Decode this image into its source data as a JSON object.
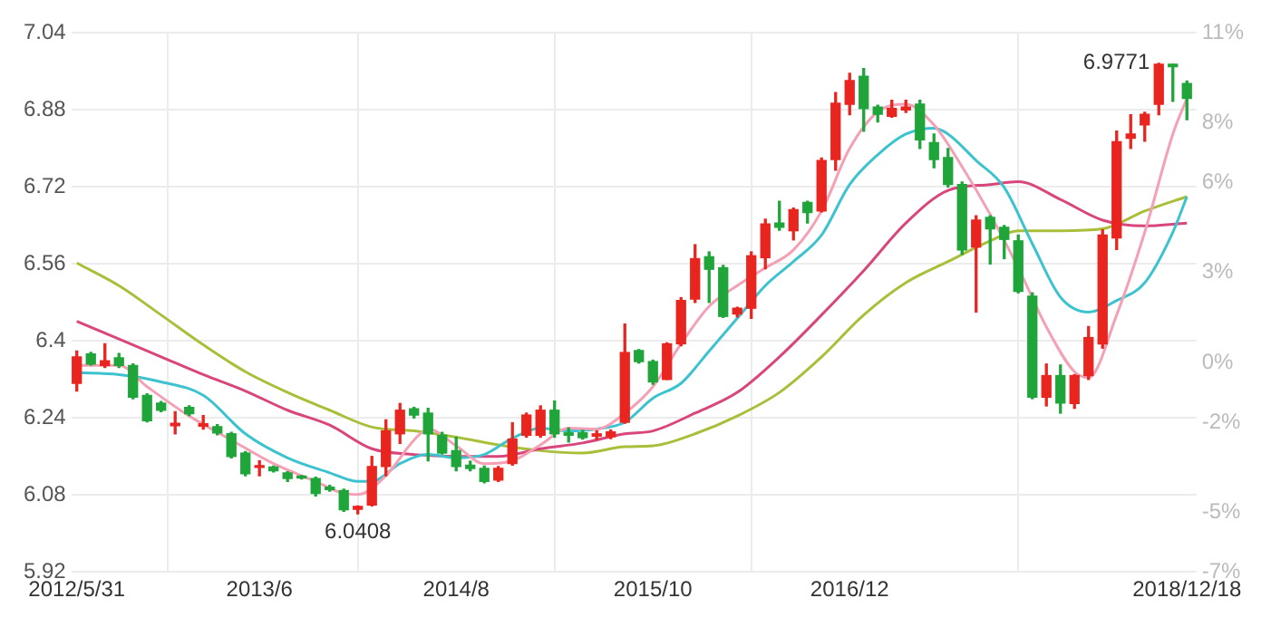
{
  "chart_data": {
    "type": "candlestick",
    "x": [
      "2012-05",
      "2012-06",
      "2012-07",
      "2012-08",
      "2012-09",
      "2012-10",
      "2012-11",
      "2012-12",
      "2013-01",
      "2013-02",
      "2013-03",
      "2013-04",
      "2013-05",
      "2013-06",
      "2013-07",
      "2013-08",
      "2013-09",
      "2013-10",
      "2013-11",
      "2013-12",
      "2014-01",
      "2014-02",
      "2014-03",
      "2014-04",
      "2014-05",
      "2014-06",
      "2014-07",
      "2014-08",
      "2014-09",
      "2014-10",
      "2014-11",
      "2014-12",
      "2015-01",
      "2015-02",
      "2015-03",
      "2015-04",
      "2015-05",
      "2015-06",
      "2015-07",
      "2015-08",
      "2015-09",
      "2015-10",
      "2015-11",
      "2015-12",
      "2016-01",
      "2016-02",
      "2016-03",
      "2016-04",
      "2016-05",
      "2016-06",
      "2016-07",
      "2016-08",
      "2016-09",
      "2016-10",
      "2016-11",
      "2016-12",
      "2017-01",
      "2017-02",
      "2017-03",
      "2017-04",
      "2017-05",
      "2017-06",
      "2017-07",
      "2017-08",
      "2017-09",
      "2017-10",
      "2017-11",
      "2017-12",
      "2018-01",
      "2018-02",
      "2018-03",
      "2018-04",
      "2018-05",
      "2018-06",
      "2018-07",
      "2018-08",
      "2018-09",
      "2018-10",
      "2018-11",
      "2018-12"
    ],
    "ohlc": [
      [
        6.312,
        6.379,
        6.296,
        6.367
      ],
      [
        6.373,
        6.376,
        6.35,
        6.352
      ],
      [
        6.349,
        6.394,
        6.345,
        6.359
      ],
      [
        6.365,
        6.374,
        6.345,
        6.349
      ],
      [
        6.349,
        6.352,
        6.28,
        6.283
      ],
      [
        6.287,
        6.29,
        6.232,
        6.234
      ],
      [
        6.271,
        6.274,
        6.253,
        6.256
      ],
      [
        6.224,
        6.253,
        6.207,
        6.229
      ],
      [
        6.262,
        6.265,
        6.245,
        6.249
      ],
      [
        6.223,
        6.245,
        6.217,
        6.228
      ],
      [
        6.222,
        6.226,
        6.205,
        6.209
      ],
      [
        6.207,
        6.21,
        6.157,
        6.16
      ],
      [
        6.167,
        6.17,
        6.12,
        6.124
      ],
      [
        6.137,
        6.151,
        6.12,
        6.141
      ],
      [
        6.138,
        6.14,
        6.128,
        6.13
      ],
      [
        6.126,
        6.128,
        6.108,
        6.114
      ],
      [
        6.119,
        6.12,
        6.113,
        6.115
      ],
      [
        6.114,
        6.117,
        6.078,
        6.083
      ],
      [
        6.096,
        6.1,
        6.088,
        6.091
      ],
      [
        6.089,
        6.092,
        6.046,
        6.049
      ],
      [
        6.05,
        6.057,
        6.0408,
        6.056
      ],
      [
        6.059,
        6.16,
        6.057,
        6.139
      ],
      [
        6.139,
        6.236,
        6.12,
        6.213
      ],
      [
        6.207,
        6.27,
        6.187,
        6.256
      ],
      [
        6.259,
        6.262,
        6.24,
        6.246
      ],
      [
        6.25,
        6.26,
        6.151,
        6.207
      ],
      [
        6.204,
        6.21,
        6.165,
        6.167
      ],
      [
        6.172,
        6.2,
        6.13,
        6.139
      ],
      [
        6.142,
        6.15,
        6.13,
        6.135
      ],
      [
        6.135,
        6.14,
        6.105,
        6.108
      ],
      [
        6.111,
        6.139,
        6.108,
        6.135
      ],
      [
        6.145,
        6.23,
        6.142,
        6.196
      ],
      [
        6.204,
        6.25,
        6.2,
        6.246
      ],
      [
        6.204,
        6.265,
        6.2,
        6.256
      ],
      [
        6.256,
        6.275,
        6.2,
        6.207
      ],
      [
        6.209,
        6.219,
        6.19,
        6.204
      ],
      [
        6.209,
        6.214,
        6.196,
        6.199
      ],
      [
        6.202,
        6.213,
        6.195,
        6.207
      ],
      [
        6.201,
        6.215,
        6.197,
        6.211
      ],
      [
        6.231,
        6.435,
        6.229,
        6.376
      ],
      [
        6.38,
        6.382,
        6.354,
        6.357
      ],
      [
        6.357,
        6.36,
        6.31,
        6.315
      ],
      [
        6.32,
        6.396,
        6.32,
        6.394
      ],
      [
        6.394,
        6.49,
        6.39,
        6.484
      ],
      [
        6.487,
        6.6,
        6.48,
        6.571
      ],
      [
        6.575,
        6.585,
        6.48,
        6.549
      ],
      [
        6.552,
        6.557,
        6.449,
        6.451
      ],
      [
        6.456,
        6.47,
        6.45,
        6.468
      ],
      [
        6.468,
        6.585,
        6.447,
        6.577
      ],
      [
        6.573,
        6.653,
        6.55,
        6.643
      ],
      [
        6.645,
        6.69,
        6.63,
        6.636
      ],
      [
        6.629,
        6.676,
        6.61,
        6.673
      ],
      [
        6.688,
        6.69,
        6.645,
        6.667
      ],
      [
        6.67,
        6.78,
        6.668,
        6.775
      ],
      [
        6.777,
        6.916,
        6.755,
        6.894
      ],
      [
        6.892,
        6.956,
        6.87,
        6.941
      ],
      [
        6.95,
        6.966,
        6.836,
        6.883
      ],
      [
        6.886,
        6.89,
        6.855,
        6.871
      ],
      [
        6.867,
        6.9,
        6.865,
        6.883
      ],
      [
        6.88,
        6.9,
        6.875,
        6.886
      ],
      [
        6.892,
        6.9,
        6.8,
        6.818
      ],
      [
        6.812,
        6.83,
        6.76,
        6.777
      ],
      [
        6.781,
        6.8,
        6.72,
        6.725
      ],
      [
        6.725,
        6.73,
        6.58,
        6.589
      ],
      [
        6.595,
        6.66,
        6.46,
        6.651
      ],
      [
        6.657,
        6.66,
        6.56,
        6.633
      ],
      [
        6.636,
        6.64,
        6.571,
        6.611
      ],
      [
        6.608,
        6.62,
        6.5,
        6.503
      ],
      [
        6.493,
        6.5,
        6.28,
        6.283
      ],
      [
        6.283,
        6.352,
        6.265,
        6.328
      ],
      [
        6.328,
        6.35,
        6.25,
        6.271
      ],
      [
        6.27,
        6.33,
        6.26,
        6.328
      ],
      [
        6.328,
        6.43,
        6.32,
        6.407
      ],
      [
        6.394,
        6.631,
        6.385,
        6.62
      ],
      [
        6.614,
        6.836,
        6.59,
        6.814
      ],
      [
        6.821,
        6.87,
        6.8,
        6.83
      ],
      [
        6.849,
        6.875,
        6.815,
        6.871
      ],
      [
        6.892,
        6.9771,
        6.87,
        6.975
      ],
      [
        6.975,
        6.975,
        6.898,
        6.97
      ],
      [
        6.935,
        6.94,
        6.86,
        6.904
      ]
    ],
    "colors": [
      "#e8251f",
      "#1fa53a",
      "#e8251f",
      "#1fa53a",
      "#1fa53a",
      "#1fa53a",
      "#1fa53a",
      "#e8251f",
      "#1fa53a",
      "#e8251f",
      "#1fa53a",
      "#1fa53a",
      "#1fa53a",
      "#e8251f",
      "#1fa53a",
      "#1fa53a",
      "#1fa53a",
      "#1fa53a",
      "#1fa53a",
      "#1fa53a",
      "#e8251f",
      "#e8251f",
      "#e8251f",
      "#e8251f",
      "#1fa53a",
      "#1fa53a",
      "#1fa53a",
      "#1fa53a",
      "#1fa53a",
      "#1fa53a",
      "#e8251f",
      "#e8251f",
      "#e8251f",
      "#e8251f",
      "#1fa53a",
      "#1fa53a",
      "#1fa53a",
      "#e8251f",
      "#e8251f",
      "#e8251f",
      "#1fa53a",
      "#1fa53a",
      "#e8251f",
      "#e8251f",
      "#e8251f",
      "#1fa53a",
      "#1fa53a",
      "#e8251f",
      "#e8251f",
      "#e8251f",
      "#1fa53a",
      "#e8251f",
      "#1fa53a",
      "#e8251f",
      "#e8251f",
      "#e8251f",
      "#1fa53a",
      "#1fa53a",
      "#e8251f",
      "#e8251f",
      "#1fa53a",
      "#1fa53a",
      "#1fa53a",
      "#1fa53a",
      "#e8251f",
      "#1fa53a",
      "#1fa53a",
      "#1fa53a",
      "#1fa53a",
      "#e8251f",
      "#1fa53a",
      "#e8251f",
      "#e8251f",
      "#e8251f",
      "#e8251f",
      "#e8251f",
      "#e8251f",
      "#e8251f",
      "#1fa53a",
      "#1fa53a"
    ],
    "series": [
      {
        "type": "line",
        "color": "#f4a0b5",
        "x": [
          "2012-05",
          "2012-08",
          "2012-10",
          "2013-01",
          "2013-04",
          "2013-07",
          "2013-10",
          "2013-12",
          "2014-01",
          "2014-03",
          "2014-05",
          "2014-06",
          "2014-08",
          "2014-10",
          "2014-12",
          "2015-02",
          "2015-04",
          "2015-06",
          "2015-08",
          "2015-10",
          "2015-12",
          "2016-02",
          "2016-04",
          "2016-06",
          "2016-08",
          "2016-10",
          "2016-12",
          "2017-02",
          "2017-04",
          "2017-06",
          "2017-08",
          "2017-10",
          "2017-12",
          "2018-02",
          "2018-04",
          "2018-05",
          "2018-07",
          "2018-09",
          "2018-11",
          "2018-12"
        ],
        "values": [
          6.349,
          6.349,
          6.305,
          6.244,
          6.194,
          6.145,
          6.108,
          6.083,
          6.081,
          6.12,
          6.194,
          6.217,
          6.182,
          6.145,
          6.151,
          6.184,
          6.219,
          6.217,
          6.25,
          6.305,
          6.394,
          6.472,
          6.515,
          6.552,
          6.589,
          6.67,
          6.8,
          6.876,
          6.892,
          6.849,
          6.762,
          6.663,
          6.552,
          6.429,
          6.336,
          6.324,
          6.454,
          6.626,
          6.83,
          6.904
        ]
      },
      {
        "type": "line",
        "color": "#3cc3cf",
        "x": [
          "2012-05",
          "2012-08",
          "2012-11",
          "2013-02",
          "2013-05",
          "2013-08",
          "2013-11",
          "2014-01",
          "2014-02",
          "2014-04",
          "2014-06",
          "2014-08",
          "2014-10",
          "2014-12",
          "2015-02",
          "2015-04",
          "2015-06",
          "2015-08",
          "2015-10",
          "2015-12",
          "2016-02",
          "2016-04",
          "2016-06",
          "2016-08",
          "2016-10",
          "2016-12",
          "2017-02",
          "2017-04",
          "2017-06",
          "2017-07",
          "2017-09",
          "2017-11",
          "2018-01",
          "2018-03",
          "2018-05",
          "2018-07",
          "2018-09",
          "2018-11",
          "2018-12"
        ],
        "values": [
          6.334,
          6.33,
          6.315,
          6.287,
          6.207,
          6.157,
          6.126,
          6.108,
          6.108,
          6.145,
          6.164,
          6.157,
          6.164,
          6.198,
          6.219,
          6.213,
          6.217,
          6.231,
          6.281,
          6.312,
          6.379,
          6.447,
          6.515,
          6.565,
          6.62,
          6.725,
          6.787,
          6.83,
          6.842,
          6.83,
          6.775,
          6.719,
          6.602,
          6.491,
          6.46,
          6.484,
          6.521,
          6.626,
          6.7
        ]
      },
      {
        "type": "line",
        "color": "#d9467c",
        "x": [
          "2012-05",
          "2012-08",
          "2012-11",
          "2013-02",
          "2013-05",
          "2013-08",
          "2013-11",
          "2014-02",
          "2014-05",
          "2014-08",
          "2014-11",
          "2015-02",
          "2015-05",
          "2015-08",
          "2015-10",
          "2016-01",
          "2016-04",
          "2016-07",
          "2016-10",
          "2017-01",
          "2017-04",
          "2017-07",
          "2017-10",
          "2017-12",
          "2018-03",
          "2018-06",
          "2018-09",
          "2018-12"
        ],
        "values": [
          6.441,
          6.404,
          6.367,
          6.33,
          6.296,
          6.256,
          6.225,
          6.176,
          6.164,
          6.16,
          6.16,
          6.176,
          6.188,
          6.207,
          6.213,
          6.25,
          6.293,
          6.367,
          6.454,
          6.546,
          6.645,
          6.713,
          6.725,
          6.731,
          6.694,
          6.651,
          6.639,
          6.645
        ]
      },
      {
        "type": "line",
        "color": "#a9bf3a",
        "x": [
          "2012-05",
          "2012-08",
          "2012-11",
          "2013-02",
          "2013-05",
          "2013-08",
          "2013-11",
          "2014-02",
          "2014-05",
          "2014-08",
          "2014-11",
          "2015-02",
          "2015-05",
          "2015-08",
          "2015-10",
          "2016-01",
          "2016-04",
          "2016-07",
          "2016-10",
          "2017-01",
          "2017-04",
          "2017-07",
          "2017-10",
          "2017-12",
          "2018-03",
          "2018-06",
          "2018-09",
          "2018-12"
        ],
        "values": [
          6.562,
          6.515,
          6.454,
          6.392,
          6.336,
          6.293,
          6.256,
          6.221,
          6.213,
          6.2,
          6.184,
          6.172,
          6.167,
          6.18,
          6.182,
          6.207,
          6.244,
          6.293,
          6.367,
          6.454,
          6.521,
          6.565,
          6.608,
          6.629,
          6.629,
          6.633,
          6.67,
          6.7
        ]
      }
    ],
    "xlim": [
      "2012-04-20",
      "2018-12-22"
    ],
    "xticks": [
      {
        "value": "2012-05",
        "label": "2012/5/31"
      },
      {
        "value": "2013-06",
        "label": "2013/6"
      },
      {
        "value": "2014-08",
        "label": "2014/8"
      },
      {
        "value": "2015-10",
        "label": "2015/10"
      },
      {
        "value": "2016-12",
        "label": "2016/12"
      },
      {
        "value": "2018-12",
        "label": "2018/12/18"
      }
    ],
    "ylim": [
      5.92,
      7.04
    ],
    "yticks": [
      5.92,
      6.08,
      6.24,
      6.4,
      6.56,
      6.72,
      6.88,
      7.04
    ],
    "y2lim": [
      -7,
      11
    ],
    "y2ticks": [
      {
        "value": -7,
        "label": "-7%"
      },
      {
        "value": -5,
        "label": "-5%"
      },
      {
        "value": -2,
        "label": "-2%"
      },
      {
        "value": 0,
        "label": "0%"
      },
      {
        "value": 3,
        "label": "3%"
      },
      {
        "value": 6,
        "label": "6%"
      },
      {
        "value": 8,
        "label": "8%"
      },
      {
        "value": 11,
        "label": "11%"
      }
    ],
    "annotations": [
      {
        "text": "6.0408",
        "x": "2014-01",
        "y": 6.0408
      },
      {
        "text": "6.9771",
        "x": "2018-10",
        "y": 6.9771
      }
    ],
    "grid": true
  }
}
